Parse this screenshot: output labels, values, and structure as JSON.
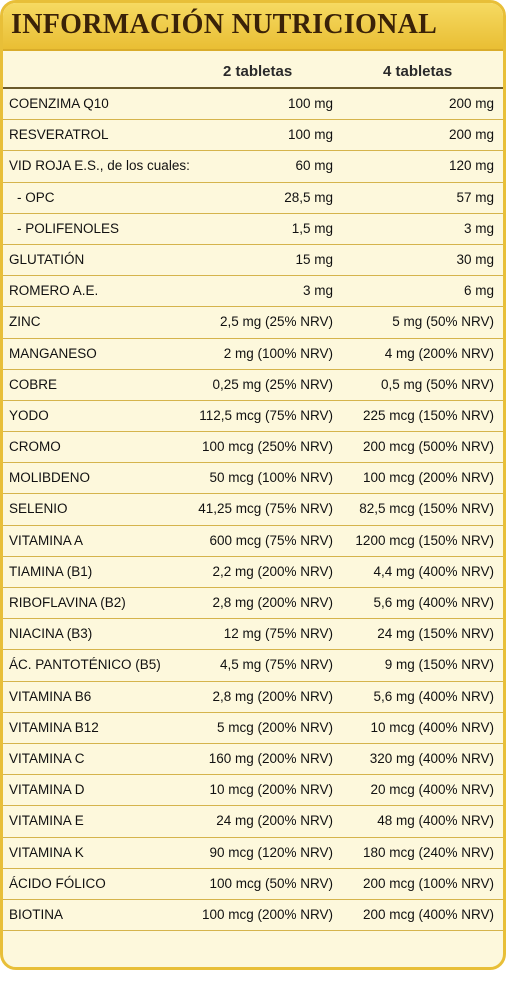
{
  "title": "INFORMACIÓN NUTRICIONAL",
  "columns": [
    "2 tabletas",
    "4 tabletas"
  ],
  "rows": [
    {
      "nutrient": "COENZIMA Q10",
      "v1": "100 mg",
      "v2": "200 mg",
      "sub": false
    },
    {
      "nutrient": "RESVERATROL",
      "v1": "100 mg",
      "v2": "200 mg",
      "sub": false
    },
    {
      "nutrient": "VID ROJA E.S., de los cuales:",
      "v1": "60 mg",
      "v2": "120 mg",
      "sub": false
    },
    {
      "nutrient": "- OPC",
      "v1": "28,5 mg",
      "v2": "57 mg",
      "sub": true
    },
    {
      "nutrient": "- POLIFENOLES",
      "v1": "1,5 mg",
      "v2": "3 mg",
      "sub": true
    },
    {
      "nutrient": "GLUTATIÓN",
      "v1": "15 mg",
      "v2": "30 mg",
      "sub": false
    },
    {
      "nutrient": "ROMERO A.E.",
      "v1": "3 mg",
      "v2": "6 mg",
      "sub": false
    },
    {
      "nutrient": "ZINC",
      "v1": "2,5 mg (25% NRV)",
      "v2": "5 mg (50% NRV)",
      "sub": false
    },
    {
      "nutrient": "MANGANESO",
      "v1": "2 mg (100% NRV)",
      "v2": "4 mg (200% NRV)",
      "sub": false
    },
    {
      "nutrient": "COBRE",
      "v1": "0,25 mg (25% NRV)",
      "v2": "0,5 mg (50% NRV)",
      "sub": false
    },
    {
      "nutrient": "YODO",
      "v1": "112,5 mcg (75% NRV)",
      "v2": "225 mcg (150% NRV)",
      "sub": false
    },
    {
      "nutrient": "CROMO",
      "v1": "100 mcg (250% NRV)",
      "v2": "200 mcg (500% NRV)",
      "sub": false
    },
    {
      "nutrient": "MOLIBDENO",
      "v1": "50 mcg (100% NRV)",
      "v2": "100 mcg (200% NRV)",
      "sub": false
    },
    {
      "nutrient": "SELENIO",
      "v1": "41,25 mcg (75% NRV)",
      "v2": "82,5 mcg (150% NRV)",
      "sub": false
    },
    {
      "nutrient": "VITAMINA A",
      "v1": "600 mcg (75% NRV)",
      "v2": "1200 mcg (150% NRV)",
      "sub": false
    },
    {
      "nutrient": "TIAMINA (B1)",
      "v1": "2,2 mg (200% NRV)",
      "v2": "4,4 mg (400% NRV)",
      "sub": false
    },
    {
      "nutrient": "RIBOFLAVINA (B2)",
      "v1": "2,8 mg (200% NRV)",
      "v2": "5,6 mg (400% NRV)",
      "sub": false
    },
    {
      "nutrient": "NIACINA (B3)",
      "v1": "12 mg (75% NRV)",
      "v2": "24 mg (150% NRV)",
      "sub": false
    },
    {
      "nutrient": "ÁC. PANTOTÉNICO (B5)",
      "v1": "4,5 mg (75% NRV)",
      "v2": "9 mg (150% NRV)",
      "sub": false
    },
    {
      "nutrient": "VITAMINA B6",
      "v1": "2,8 mg (200% NRV)",
      "v2": "5,6 mg (400% NRV)",
      "sub": false
    },
    {
      "nutrient": "VITAMINA B12",
      "v1": "5 mcg (200% NRV)",
      "v2": "10 mcg (400% NRV)",
      "sub": false
    },
    {
      "nutrient": "VITAMINA C",
      "v1": "160 mg (200% NRV)",
      "v2": "320 mg (400% NRV)",
      "sub": false
    },
    {
      "nutrient": "VITAMINA D",
      "v1": "10 mcg (200% NRV)",
      "v2": "20 mcg (400% NRV)",
      "sub": false
    },
    {
      "nutrient": "VITAMINA E",
      "v1": "24 mg (200% NRV)",
      "v2": "48 mg (400% NRV)",
      "sub": false
    },
    {
      "nutrient": "VITAMINA K",
      "v1": "90 mcg (120% NRV)",
      "v2": "180 mcg (240% NRV)",
      "sub": false
    },
    {
      "nutrient": "ÁCIDO FÓLICO",
      "v1": "100 mcg (50% NRV)",
      "v2": "200 mcg (100% NRV)",
      "sub": false
    },
    {
      "nutrient": "BIOTINA",
      "v1": "100 mcg (200% NRV)",
      "v2": "200 mcg (400% NRV)",
      "sub": false
    }
  ]
}
